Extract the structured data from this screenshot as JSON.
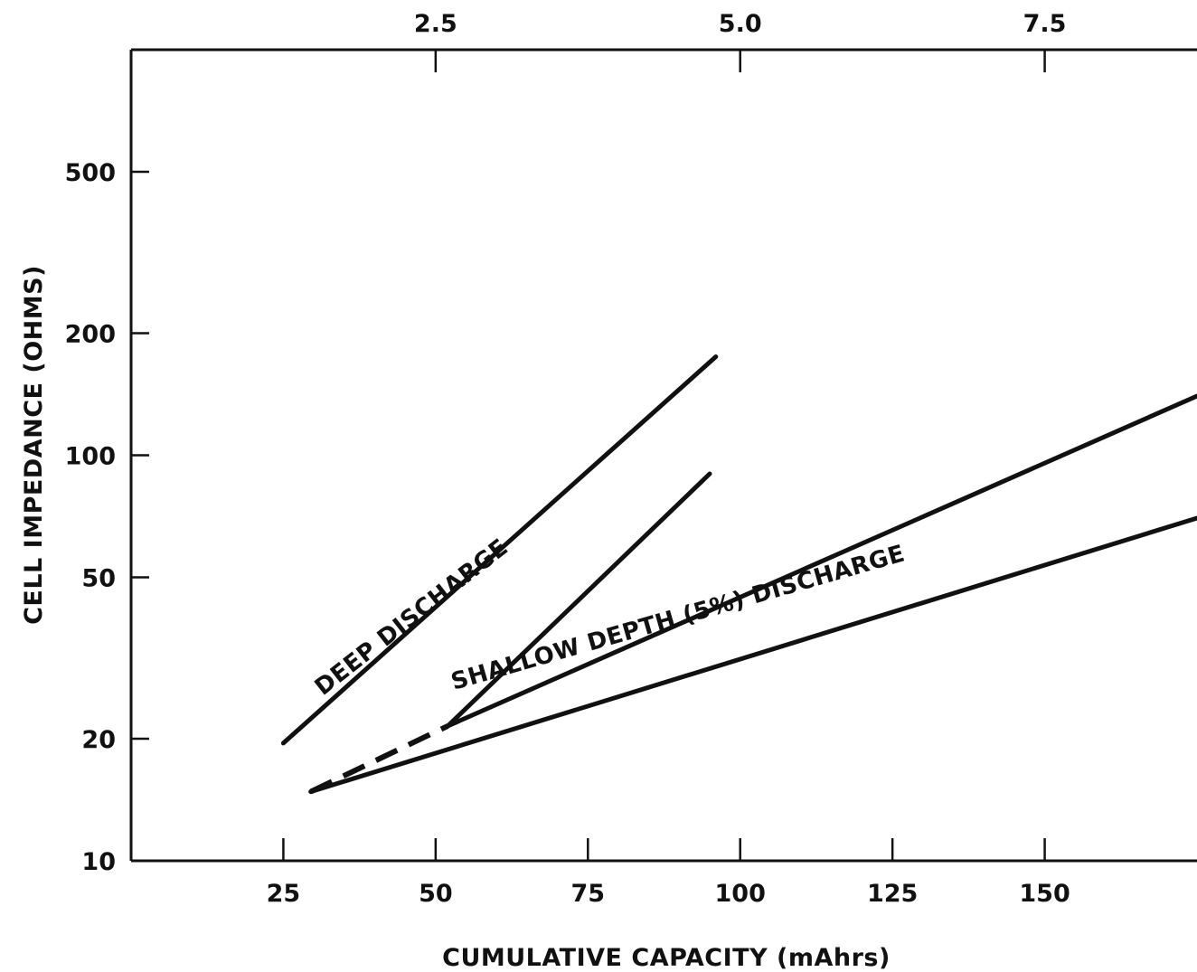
{
  "chart_data": {
    "type": "line",
    "title": "",
    "xlabel": "CUMULATIVE CAPACITY (mAhrs)",
    "ylabel": "CELL IMPEDANCE (OHMS)",
    "x_scale": "linear",
    "y_scale": "log",
    "xlim": [
      0,
      175
    ],
    "ylim": [
      10,
      1000
    ],
    "x_ticks": [
      25,
      50,
      75,
      100,
      125,
      150
    ],
    "x_tick_labels": [
      "25",
      "50",
      "75",
      "100",
      "125",
      "150"
    ],
    "top_axis": {
      "ticks": [
        2.5,
        5.0,
        7.5
      ],
      "tick_labels": [
        "2.5",
        "5.0",
        "7.5"
      ],
      "bottom_equivalent": [
        50,
        100,
        150
      ]
    },
    "y_ticks": [
      10,
      20,
      50,
      100,
      200,
      500
    ],
    "y_tick_labels": [
      "10",
      "20",
      "50",
      "100",
      "200",
      "500"
    ],
    "grid": false,
    "series": [
      {
        "group": "deep",
        "style": "solid",
        "points": [
          [
            25,
            19.5
          ],
          [
            96,
            175
          ]
        ]
      },
      {
        "group": "deep",
        "style": "dashed",
        "points": [
          [
            29.5,
            14.8
          ],
          [
            52,
            21.5
          ]
        ]
      },
      {
        "group": "deep",
        "style": "solid",
        "points": [
          [
            52,
            21.5
          ],
          [
            95,
            90
          ]
        ]
      },
      {
        "group": "shallow",
        "style": "solid",
        "points": [
          [
            52,
            21.5
          ],
          [
            175,
            140
          ]
        ]
      },
      {
        "group": "shallow",
        "style": "solid",
        "points": [
          [
            29.5,
            14.8
          ],
          [
            175,
            70
          ]
        ]
      }
    ],
    "annotations": [
      {
        "id": "deep",
        "text": "DEEP DISCHARGE"
      },
      {
        "id": "shallow",
        "text": "SHALLOW DEPTH (5%) DISCHARGE"
      }
    ]
  }
}
